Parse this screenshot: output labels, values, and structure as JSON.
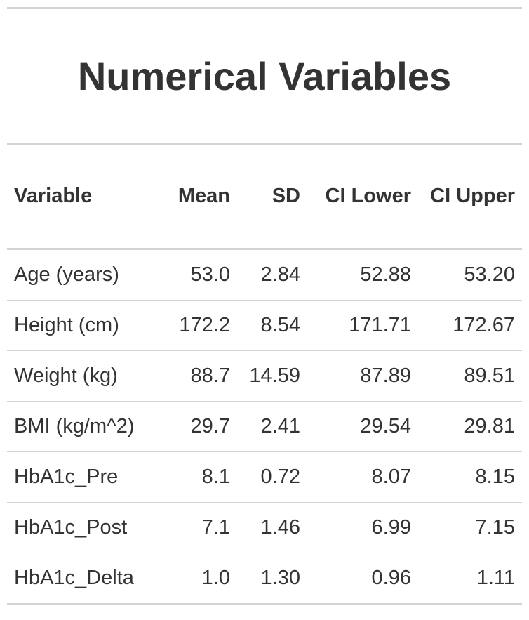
{
  "title": "Numerical Variables",
  "colors": {
    "text": "#333333",
    "rule": "#d3d3d3",
    "background": "#ffffff"
  },
  "chart_data": {
    "type": "table",
    "title": "Numerical Variables",
    "columns": [
      "Variable",
      "Mean",
      "SD",
      "CI Lower",
      "CI Upper"
    ],
    "rows": [
      [
        "Age (years)",
        "53.0",
        "2.84",
        "52.88",
        "53.20"
      ],
      [
        "Height (cm)",
        "172.2",
        "8.54",
        "171.71",
        "172.67"
      ],
      [
        "Weight (kg)",
        "88.7",
        "14.59",
        "87.89",
        "89.51"
      ],
      [
        "BMI (kg/m^2)",
        "29.7",
        "2.41",
        "29.54",
        "29.81"
      ],
      [
        "HbA1c_Pre",
        "8.1",
        "0.72",
        "8.07",
        "8.15"
      ],
      [
        "HbA1c_Post",
        "7.1",
        "1.46",
        "6.99",
        "7.15"
      ],
      [
        "HbA1c_Delta",
        "1.0",
        "1.30",
        "0.96",
        "1.11"
      ]
    ]
  }
}
